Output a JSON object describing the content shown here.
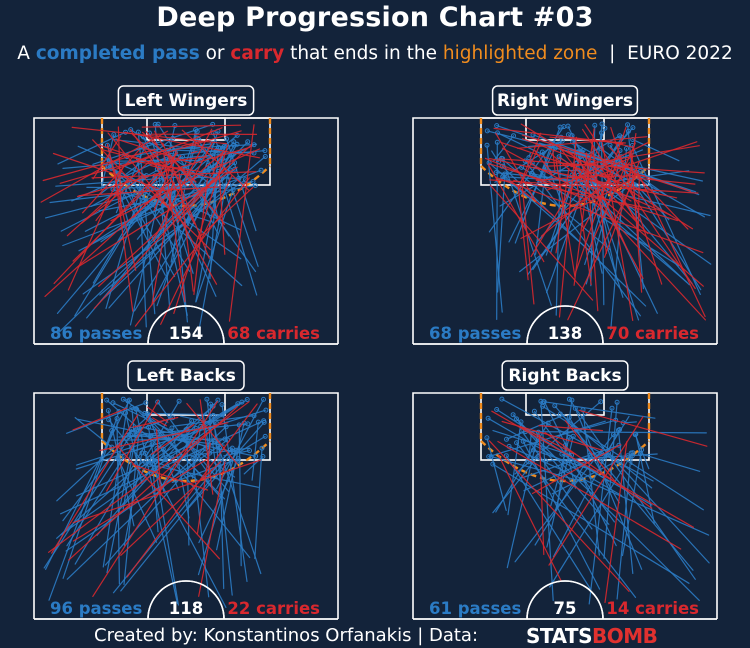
{
  "title": "Deep Progression Chart #03",
  "subtitle": {
    "prefix": "A ",
    "pass_word": "completed pass",
    "or_word": " or ",
    "carry_word": "carry",
    "middle": " that ends in the ",
    "zone_word": "highlighted zone",
    "suffix": "  |  EURO 2022"
  },
  "footer": {
    "credit": "Created by: Konstantinos Orfanakis | Data:",
    "brand_a": "STATS",
    "brand_b": "BOMB"
  },
  "colors": {
    "background": "#13233a",
    "pass": "#2b7bc4",
    "carry": "#d8282e",
    "zone": "#f08c1e",
    "pitch_lines": "#ffffff"
  },
  "chart_data": [
    {
      "type": "scatter",
      "title": "Left Wingers",
      "passes": 86,
      "carries": 68,
      "total": 154,
      "passes_label": "86 passes",
      "carries_label": "68 carries",
      "total_label": "154",
      "side": "left"
    },
    {
      "type": "scatter",
      "title": "Right Wingers",
      "passes": 68,
      "carries": 70,
      "total": 138,
      "passes_label": "68 passes",
      "carries_label": "70 carries",
      "total_label": "138",
      "side": "right"
    },
    {
      "type": "scatter",
      "title": "Left Backs",
      "passes": 96,
      "carries": 22,
      "total": 118,
      "passes_label": "96 passes",
      "carries_label": "22 carries",
      "total_label": "118",
      "side": "left"
    },
    {
      "type": "scatter",
      "title": "Right Backs",
      "passes": 61,
      "carries": 14,
      "total": 75,
      "passes_label": "61 passes",
      "carries_label": "14 carries",
      "total_label": "75",
      "side": "right"
    }
  ]
}
